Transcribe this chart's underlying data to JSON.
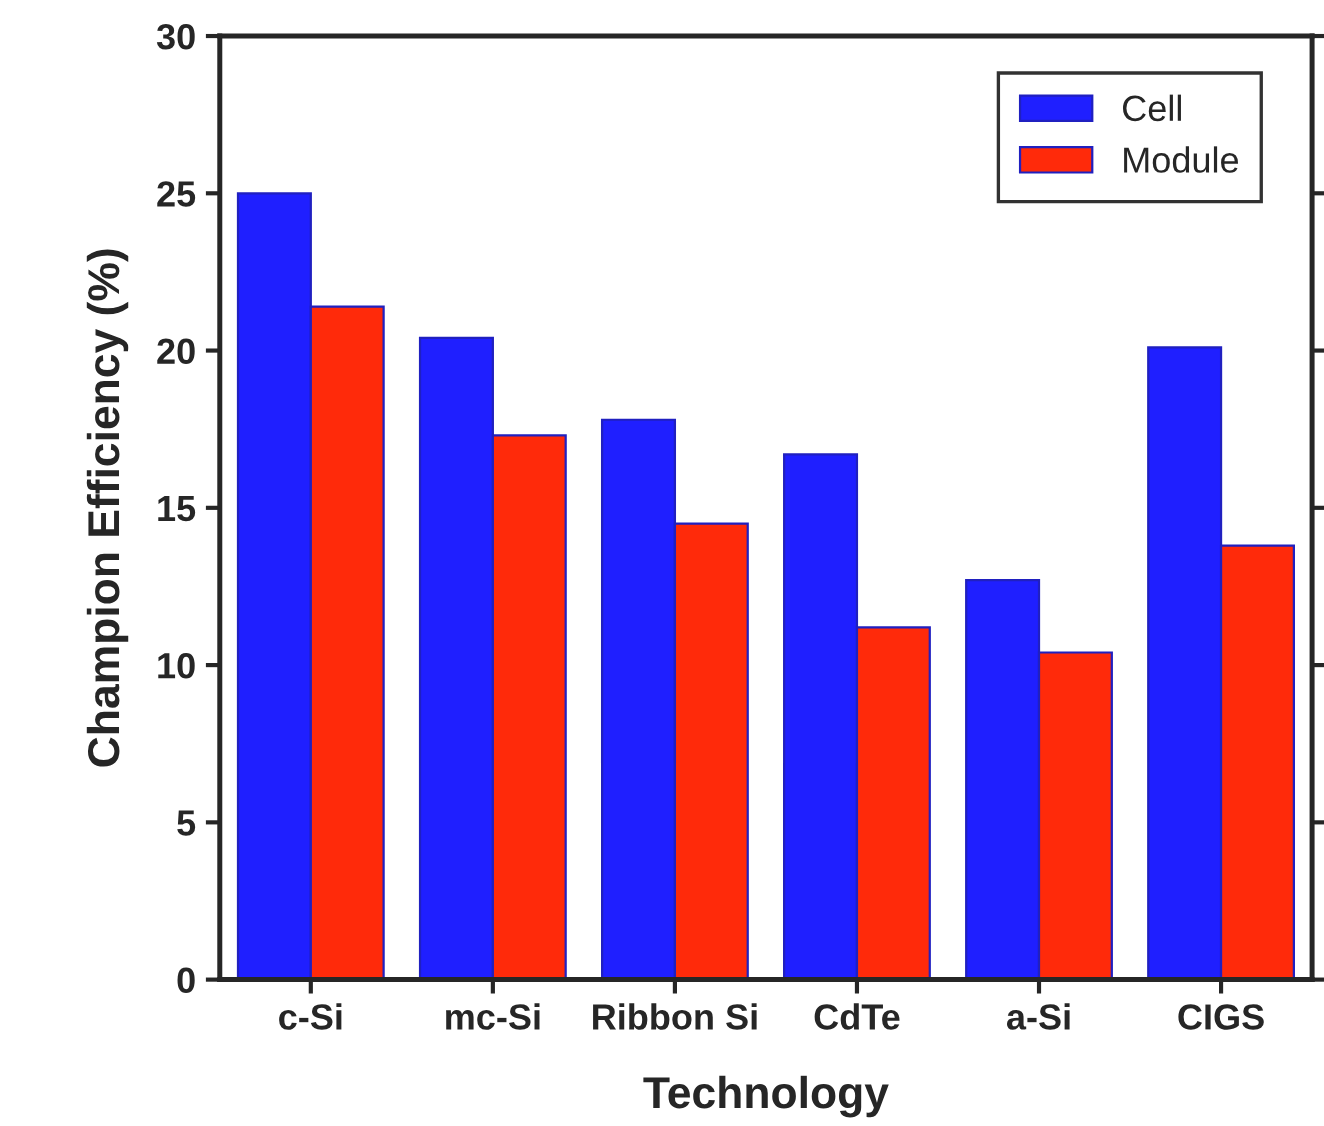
{
  "chart_data": {
    "type": "bar",
    "xlabel": "Technology",
    "ylabel": "Champion Efficiency (%)",
    "categories": [
      "c-Si",
      "mc-Si",
      "Ribbon Si",
      "CdTe",
      "a-Si",
      "CIGS"
    ],
    "series": [
      {
        "name": "Cell",
        "color": "#1f1fff",
        "values": [
          25.0,
          20.4,
          17.8,
          16.7,
          12.7,
          20.1
        ]
      },
      {
        "name": "Module",
        "color": "#ff2a0a",
        "values": [
          21.4,
          17.3,
          14.5,
          11.2,
          10.4,
          13.8
        ]
      }
    ],
    "ylim": [
      0,
      30
    ],
    "yticks": [
      0,
      5,
      10,
      15,
      20,
      25,
      30
    ],
    "legend": "top right",
    "grid": false
  }
}
